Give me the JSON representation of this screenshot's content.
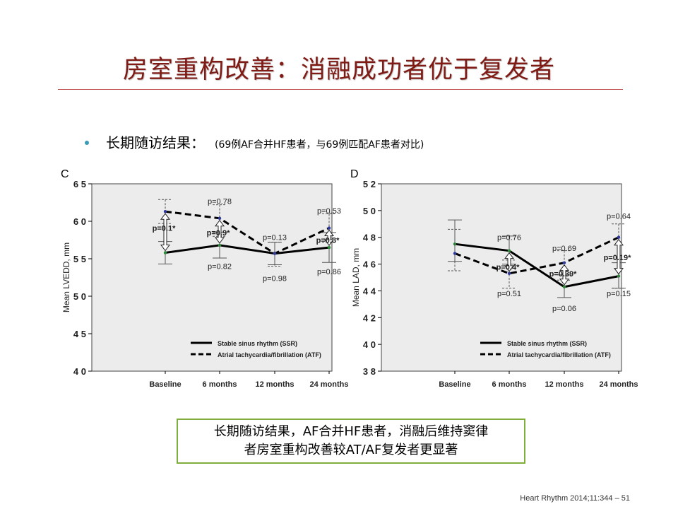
{
  "slide": {
    "title": "房室重构改善：消融成功者优于复发者",
    "bullet": {
      "main": "长期随访结果：",
      "sub": "(69例AF合并HF患者，与69例匹配AF患者对比)"
    },
    "callout": {
      "line1": "长期随访结果，AF合并HF患者，消融后维持窦律",
      "line2": "者房室重构改善较AT/AF复发者更显著"
    },
    "citation": "Heart Rhythm 2014;11:344 – 51",
    "colors": {
      "title": "#7f1a14",
      "rule": "#c0504d",
      "callout_border": "#7fae3c",
      "bullet": "#3b9ab5",
      "plot_bg": "#ececec"
    }
  },
  "chart_data": [
    {
      "panel": "C",
      "type": "line",
      "ylabel": "Mean LVEDD, mm",
      "ylim": [
        40,
        65
      ],
      "yticks": [
        "4 0",
        "4 5",
        "5 0",
        "5 5",
        "6 0",
        "6 5"
      ],
      "categories": [
        "Baseline",
        "6 months",
        "12 months",
        "24 months"
      ],
      "series": [
        {
          "name": "Stable sinus rhythm (SSR)",
          "line_style": "solid",
          "values": [
            55.8,
            56.8,
            55.7,
            56.5
          ],
          "error_low": [
            54.3,
            55.1,
            54.2,
            54.5
          ],
          "error_high": [
            57.3,
            58.5,
            57.2,
            58.5
          ]
        },
        {
          "name": "Atrial tachycardia/fibrillation (ATF)",
          "line_style": "dashed",
          "values": [
            61.3,
            60.4,
            55.7,
            59.1
          ],
          "error_low": [
            59.7,
            58.0,
            54.0,
            57.2
          ],
          "error_high": [
            62.9,
            62.2,
            57.2,
            61.0
          ]
        }
      ],
      "annotations": [
        {
          "text": "p=0.1*",
          "bold": true,
          "at": "Baseline",
          "y": 59.1
        },
        {
          "text": "p=0.78",
          "bold": false,
          "at": "6 months",
          "y": 62.7
        },
        {
          "text": "p=0.9*",
          "bold": true,
          "at": "6 months",
          "y": 58.5
        },
        {
          "text": "p=0.82",
          "bold": false,
          "at": "6 months",
          "y": 54.0
        },
        {
          "text": "p=0.13",
          "bold": false,
          "at": "12 months",
          "y": 57.9
        },
        {
          "text": "p=0.98",
          "bold": false,
          "at": "12 months",
          "y": 52.4
        },
        {
          "text": "p=0.53",
          "bold": false,
          "at": "24 months",
          "y": 61.4
        },
        {
          "text": "p=0.3*",
          "bold": true,
          "at": "24 months",
          "y": 57.5
        },
        {
          "text": "p=0.86",
          "bold": false,
          "at": "24 months",
          "y": 53.3
        }
      ],
      "legend_placement": "bottom-right"
    },
    {
      "panel": "D",
      "type": "line",
      "ylabel": "Mean LAD, mm",
      "ylim": [
        38,
        52
      ],
      "yticks": [
        "3 8",
        "4 0",
        "4 2",
        "4 4",
        "4 6",
        "4 8",
        "5 0",
        "5 2"
      ],
      "categories": [
        "Baseline",
        "6 months",
        "12 months",
        "24 months"
      ],
      "series": [
        {
          "name": "Stable sinus rhythm (SSR)",
          "line_style": "solid",
          "values": [
            47.5,
            47.0,
            44.3,
            45.1
          ],
          "error_low": [
            46.2,
            46.0,
            43.5,
            44.2
          ],
          "error_high": [
            49.3,
            48.1,
            45.2,
            46.1
          ]
        },
        {
          "name": "Atrial tachycardia/fibrillation (ATF)",
          "line_style": "dashed",
          "values": [
            46.8,
            45.3,
            46.1,
            48.0
          ],
          "error_low": [
            45.5,
            44.2,
            44.8,
            44.2
          ],
          "error_high": [
            48.6,
            46.3,
            47.0,
            49.0
          ]
        }
      ],
      "annotations": [
        {
          "text": "p=0.76",
          "bold": false,
          "at": "6 months",
          "y": 48.0
        },
        {
          "text": "p=0.4*",
          "bold": true,
          "at": "6 months",
          "y": 45.8
        },
        {
          "text": "p=0.51",
          "bold": false,
          "at": "6 months",
          "y": 43.8
        },
        {
          "text": "p=0.69",
          "bold": false,
          "at": "12 months",
          "y": 47.2
        },
        {
          "text": "p=0.39*",
          "bold": true,
          "at": "12 months",
          "y": 45.3
        },
        {
          "text": "p=0.06",
          "bold": false,
          "at": "12 months",
          "y": 42.7
        },
        {
          "text": "p=0.64",
          "bold": false,
          "at": "24 months",
          "y": 49.6
        },
        {
          "text": "p=0.19*",
          "bold": true,
          "at": "24 months",
          "y": 46.5
        },
        {
          "text": "p=0.15",
          "bold": false,
          "at": "24 months",
          "y": 43.8
        }
      ],
      "legend_placement": "bottom-right"
    }
  ]
}
